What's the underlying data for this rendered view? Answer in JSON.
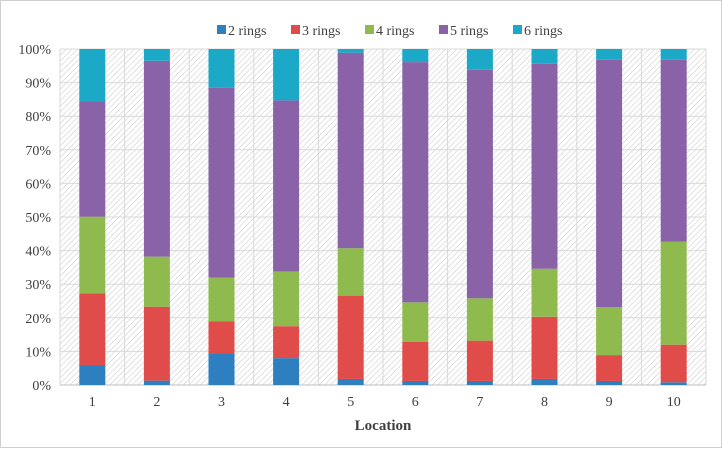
{
  "chart_data": {
    "type": "bar",
    "stacked": true,
    "percent": true,
    "title": "",
    "xlabel": "Location",
    "ylabel": "",
    "ylim": [
      0,
      100
    ],
    "yticks": [
      "0%",
      "10%",
      "20%",
      "30%",
      "40%",
      "50%",
      "60%",
      "70%",
      "80%",
      "90%",
      "100%"
    ],
    "categories": [
      "1",
      "2",
      "3",
      "4",
      "5",
      "6",
      "7",
      "8",
      "9",
      "10"
    ],
    "legend_position": "top",
    "grid": true,
    "series": [
      {
        "name": "2 rings",
        "color": "#2e7fc0",
        "values": [
          5.8,
          1.3,
          9.5,
          8.0,
          1.8,
          1.2,
          1.2,
          1.8,
          1.2,
          0.8
        ]
      },
      {
        "name": "3 rings",
        "color": "#e04c4a",
        "values": [
          21.5,
          22.0,
          9.4,
          9.5,
          24.8,
          11.7,
          12.0,
          18.5,
          7.7,
          11.2
        ]
      },
      {
        "name": "4 rings",
        "color": "#8fbb4e",
        "values": [
          22.8,
          14.9,
          13.1,
          16.3,
          14.1,
          11.7,
          12.6,
          14.3,
          14.3,
          30.7
        ]
      },
      {
        "name": "5 rings",
        "color": "#8a62a8",
        "values": [
          34.4,
          58.3,
          56.5,
          50.9,
          58.2,
          71.5,
          68.0,
          61.0,
          73.6,
          54.1
        ]
      },
      {
        "name": "6 rings",
        "color": "#1ba9c7",
        "values": [
          15.5,
          3.5,
          11.5,
          15.3,
          1.1,
          3.9,
          6.2,
          4.4,
          3.2,
          3.2
        ]
      }
    ]
  }
}
